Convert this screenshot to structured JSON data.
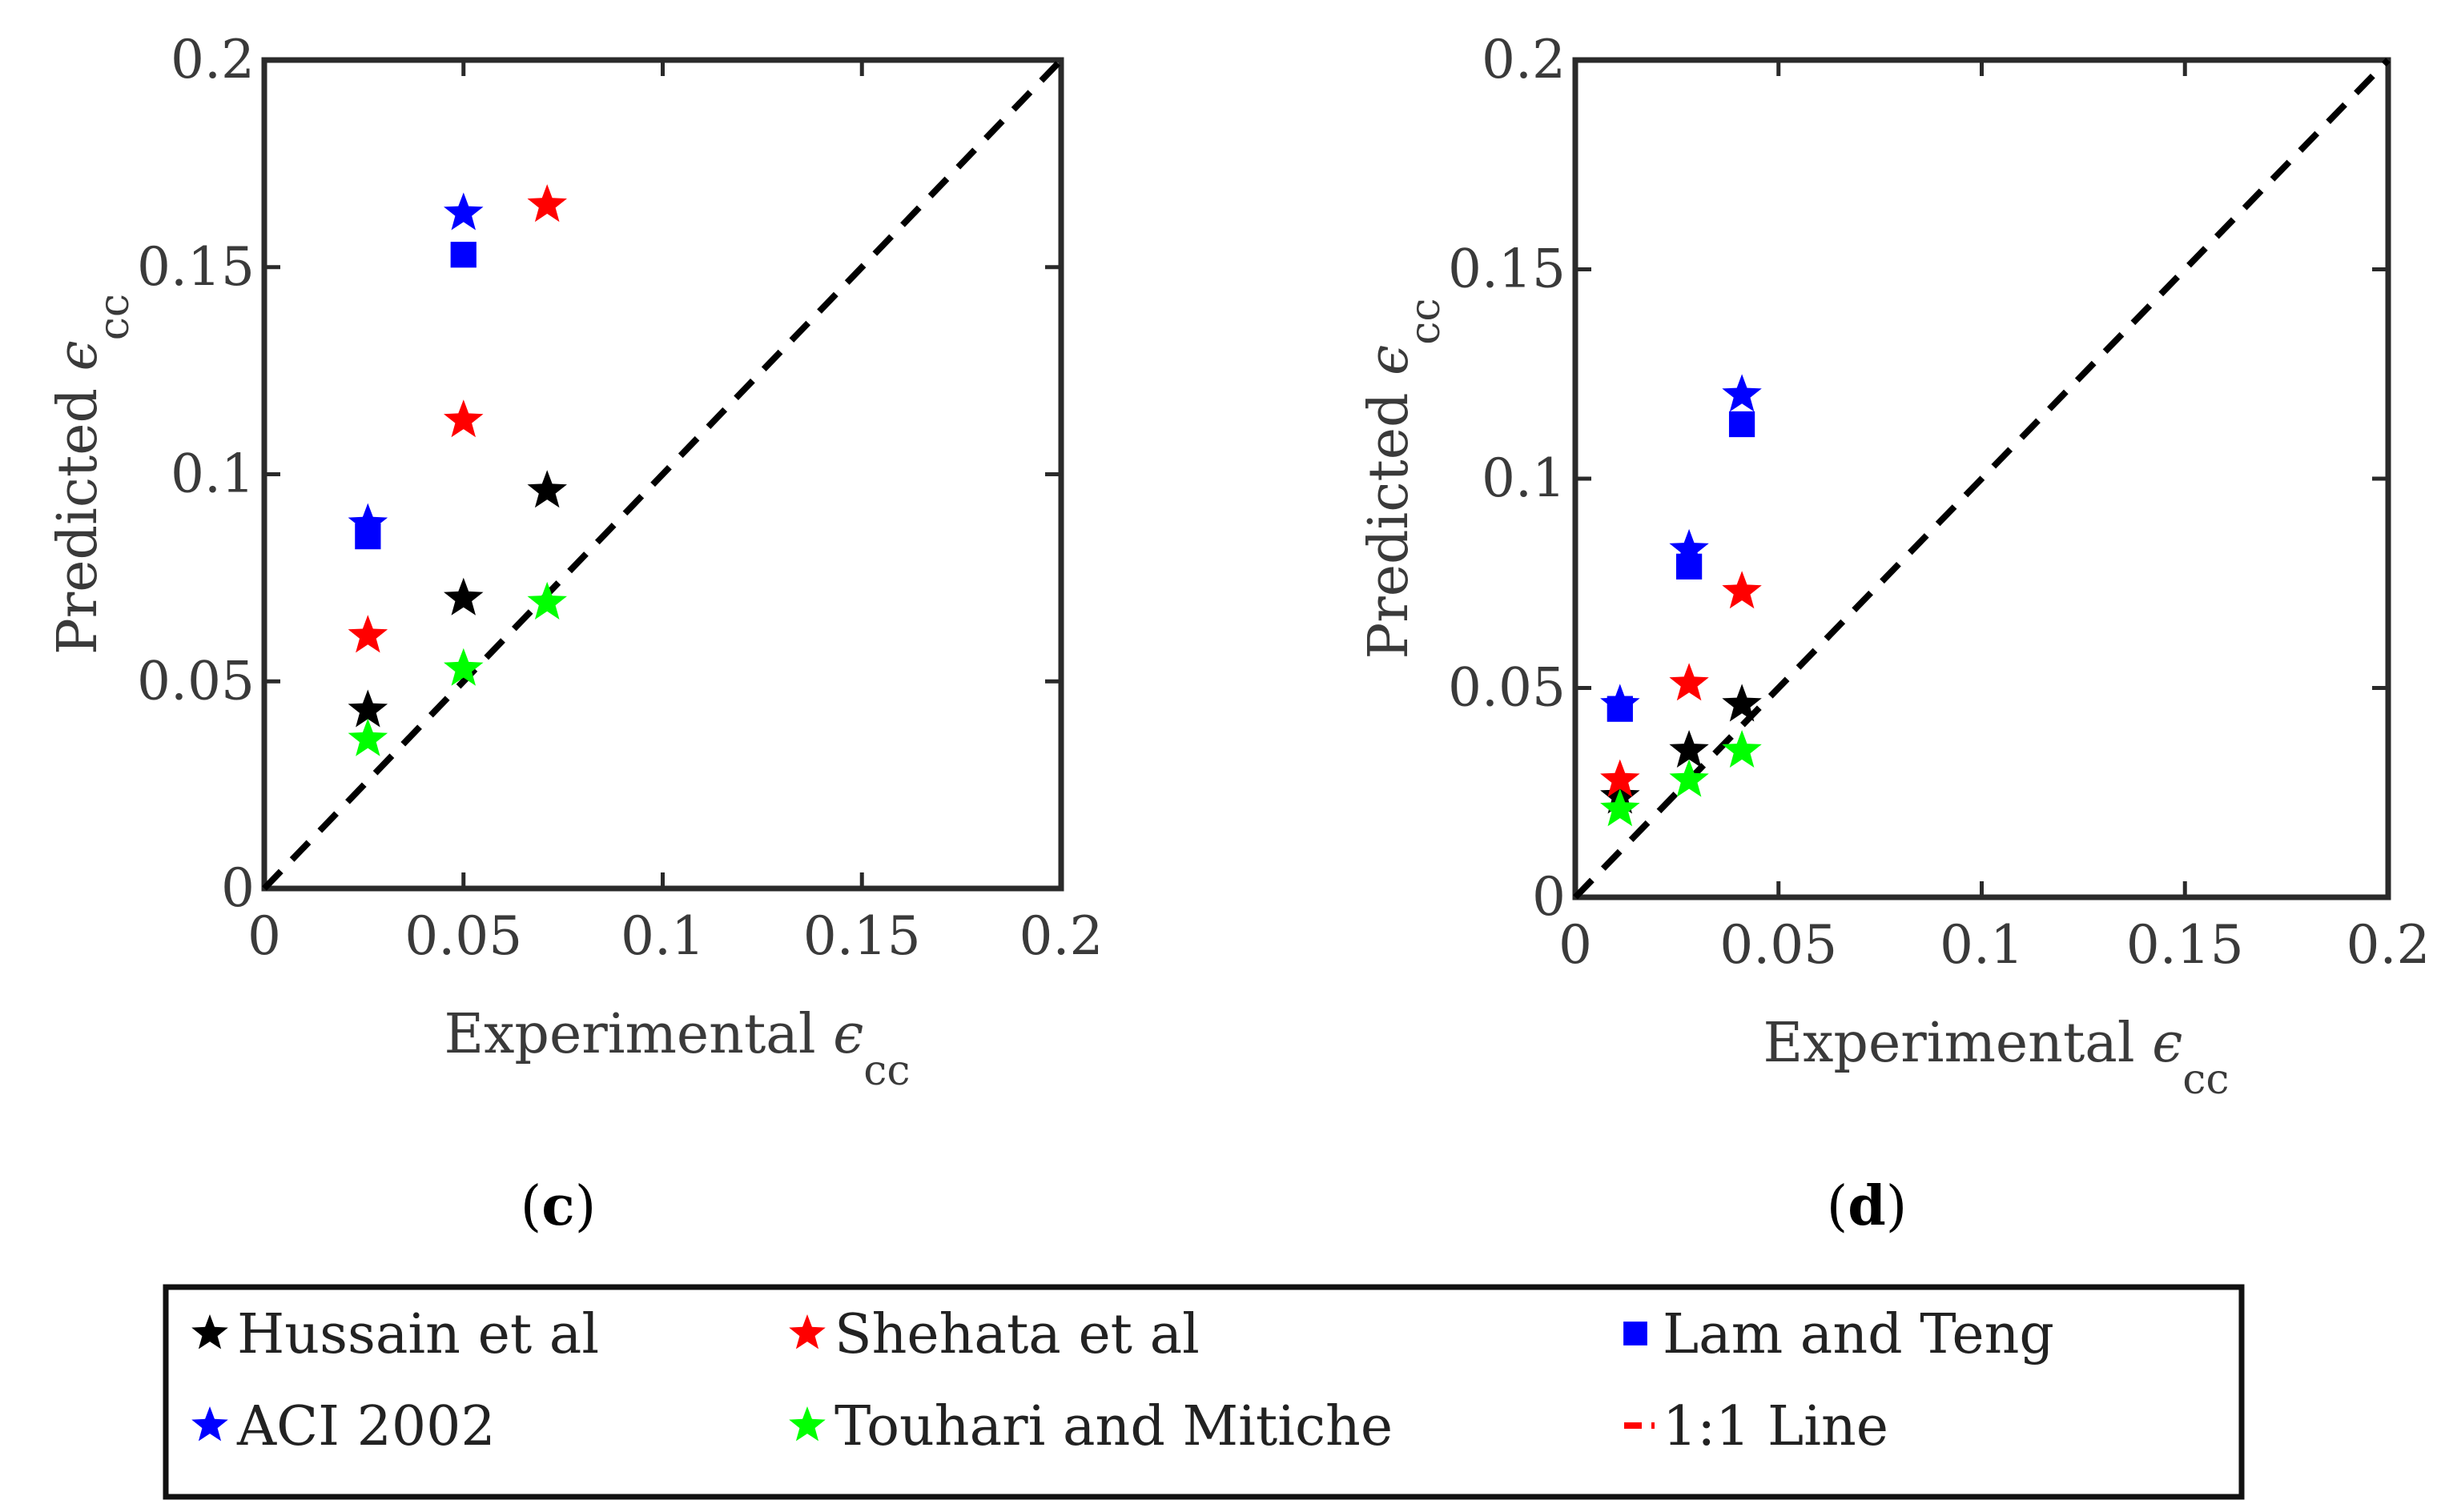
{
  "chart_data": [
    {
      "type": "scatter",
      "panel": "c",
      "xlabel": "Experimental",
      "ylabel": "Predicted",
      "epsilon": "ϵ",
      "subscript": "cc",
      "xlim": [
        0,
        0.2
      ],
      "ylim": [
        0,
        0.2
      ],
      "xticks": [
        "0",
        "0.05",
        "0.1",
        "0.15",
        "0.2"
      ],
      "yticks": [
        "0",
        "0.05",
        "0.1",
        "0.15",
        "0.2"
      ],
      "series": [
        {
          "name": "Hussain et al",
          "marker": "star",
          "color": "#000000",
          "points": [
            [
              0.026,
              0.043
            ],
            [
              0.05,
              0.07
            ],
            [
              0.071,
              0.096
            ]
          ]
        },
        {
          "name": "Shehata et al",
          "marker": "star",
          "color": "#ff0000",
          "points": [
            [
              0.026,
              0.061
            ],
            [
              0.05,
              0.113
            ],
            [
              0.071,
              0.165
            ]
          ]
        },
        {
          "name": "Lam and Teng",
          "marker": "square",
          "color": "#0000ff",
          "points": [
            [
              0.026,
              0.085
            ],
            [
              0.05,
              0.153
            ]
          ]
        },
        {
          "name": "ACI 2002",
          "marker": "star",
          "color": "#0000ff",
          "points": [
            [
              0.026,
              0.088
            ],
            [
              0.05,
              0.163
            ]
          ]
        },
        {
          "name": "Touhari and Mitiche",
          "marker": "star",
          "color": "#00ff00",
          "points": [
            [
              0.026,
              0.036
            ],
            [
              0.05,
              0.053
            ],
            [
              0.071,
              0.069
            ]
          ]
        }
      ]
    },
    {
      "type": "scatter",
      "panel": "d",
      "xlabel": "Experimental",
      "ylabel": "Predicted",
      "epsilon": "ϵ",
      "subscript": "cc",
      "xlim": [
        0,
        0.2
      ],
      "ylim": [
        0,
        0.2
      ],
      "xticks": [
        "0",
        "0.05",
        "0.1",
        "0.15",
        "0.2"
      ],
      "yticks": [
        "0",
        "0.05",
        "0.1",
        "0.15",
        "0.2"
      ],
      "series": [
        {
          "name": "Hussain et al",
          "marker": "star",
          "color": "#000000",
          "points": [
            [
              0.011,
              0.024
            ],
            [
              0.028,
              0.035
            ],
            [
              0.041,
              0.046
            ]
          ]
        },
        {
          "name": "Shehata et al",
          "marker": "star",
          "color": "#ff0000",
          "points": [
            [
              0.011,
              0.028
            ],
            [
              0.028,
              0.051
            ],
            [
              0.041,
              0.073
            ]
          ]
        },
        {
          "name": "Lam and Teng",
          "marker": "square",
          "color": "#0000ff",
          "points": [
            [
              0.011,
              0.045
            ],
            [
              0.028,
              0.079
            ],
            [
              0.041,
              0.113
            ]
          ]
        },
        {
          "name": "ACI 2002",
          "marker": "star",
          "color": "#0000ff",
          "points": [
            [
              0.011,
              0.046
            ],
            [
              0.028,
              0.083
            ],
            [
              0.041,
              0.12
            ]
          ]
        },
        {
          "name": "Touhari and Mitiche",
          "marker": "star",
          "color": "#00ff00",
          "points": [
            [
              0.011,
              0.021
            ],
            [
              0.028,
              0.028
            ],
            [
              0.041,
              0.035
            ]
          ]
        }
      ]
    }
  ],
  "panels": {
    "c_label": "(c)",
    "d_label": "(d)",
    "c_letter": "c",
    "d_letter": "d"
  },
  "legend": {
    "items": [
      {
        "label": "Hussain et al",
        "marker": "star",
        "color": "#000000"
      },
      {
        "label": "Shehata et al",
        "marker": "star",
        "color": "#ff0000"
      },
      {
        "label": "Lam and Teng",
        "marker": "square",
        "color": "#0000ff"
      },
      {
        "label": "ACI 2002",
        "marker": "star",
        "color": "#0000ff"
      },
      {
        "label": "Touhari and Mitiche",
        "marker": "star",
        "color": "#00ff00"
      },
      {
        "label": "1:1 Line",
        "marker": "dash",
        "color": "#ff0000"
      }
    ]
  }
}
